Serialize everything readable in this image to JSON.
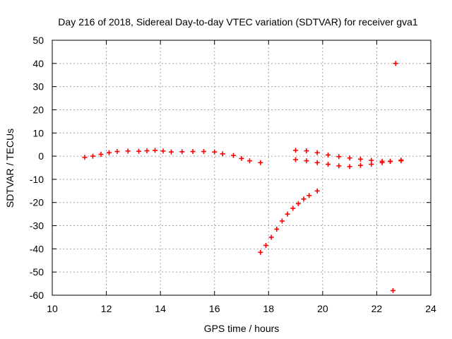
{
  "chart_data": {
    "type": "scatter",
    "title": "Day 216 of 2018, Sidereal Day-to-day VTEC variation (SDTVAR) for receiver gva1",
    "xlabel": "GPS time / hours",
    "ylabel": "SDTVAR / TECUs",
    "xlim": [
      10,
      24
    ],
    "ylim": [
      -60,
      50
    ],
    "xticks": [
      10,
      12,
      14,
      16,
      18,
      20,
      22,
      24
    ],
    "yticks": [
      -60,
      -50,
      -40,
      -30,
      -20,
      -10,
      0,
      10,
      20,
      30,
      40,
      50
    ],
    "grid": true,
    "marker": "plus",
    "color": "#ff0000",
    "series": [
      {
        "x": [
          11.2,
          11.5,
          11.8,
          12.1,
          12.4,
          12.8,
          13.2,
          13.5,
          13.8,
          14.1,
          14.4,
          14.8,
          15.2,
          15.6,
          16.0,
          16.3,
          16.7,
          17.0,
          17.3,
          17.7
        ],
        "y": [
          -0.5,
          0.0,
          0.8,
          1.5,
          2.0,
          2.2,
          2.1,
          2.3,
          2.5,
          2.2,
          1.8,
          1.9,
          2.0,
          2.0,
          1.8,
          1.0,
          0.3,
          -1.0,
          -2.0,
          -2.8
        ]
      },
      {
        "x": [
          19.0,
          19.4,
          19.8,
          20.2,
          20.6,
          21.0,
          21.4,
          21.8,
          22.2,
          22.5,
          22.9
        ],
        "y": [
          2.5,
          2.3,
          1.5,
          0.5,
          -0.2,
          -0.8,
          -1.3,
          -1.8,
          -2.2,
          -2.3,
          -2.0
        ]
      },
      {
        "x": [
          19.0,
          19.4,
          19.8,
          20.2,
          20.6,
          21.0,
          21.4,
          21.8,
          22.2,
          22.5,
          22.9
        ],
        "y": [
          -1.5,
          -2.0,
          -2.8,
          -3.5,
          -4.2,
          -4.5,
          -4.0,
          -3.5,
          -2.8,
          -2.2,
          -1.7
        ]
      },
      {
        "x": [
          17.7,
          17.9,
          18.1,
          18.3,
          18.5,
          18.7,
          18.9,
          19.1,
          19.3,
          19.5,
          19.8
        ],
        "y": [
          -41.5,
          -38.5,
          -35.0,
          -31.5,
          -28.0,
          -25.0,
          -22.5,
          -20.5,
          -18.5,
          -17.0,
          -15.0
        ]
      },
      {
        "x": [
          22.7,
          22.6
        ],
        "y": [
          40.0,
          -58.0
        ]
      }
    ]
  }
}
